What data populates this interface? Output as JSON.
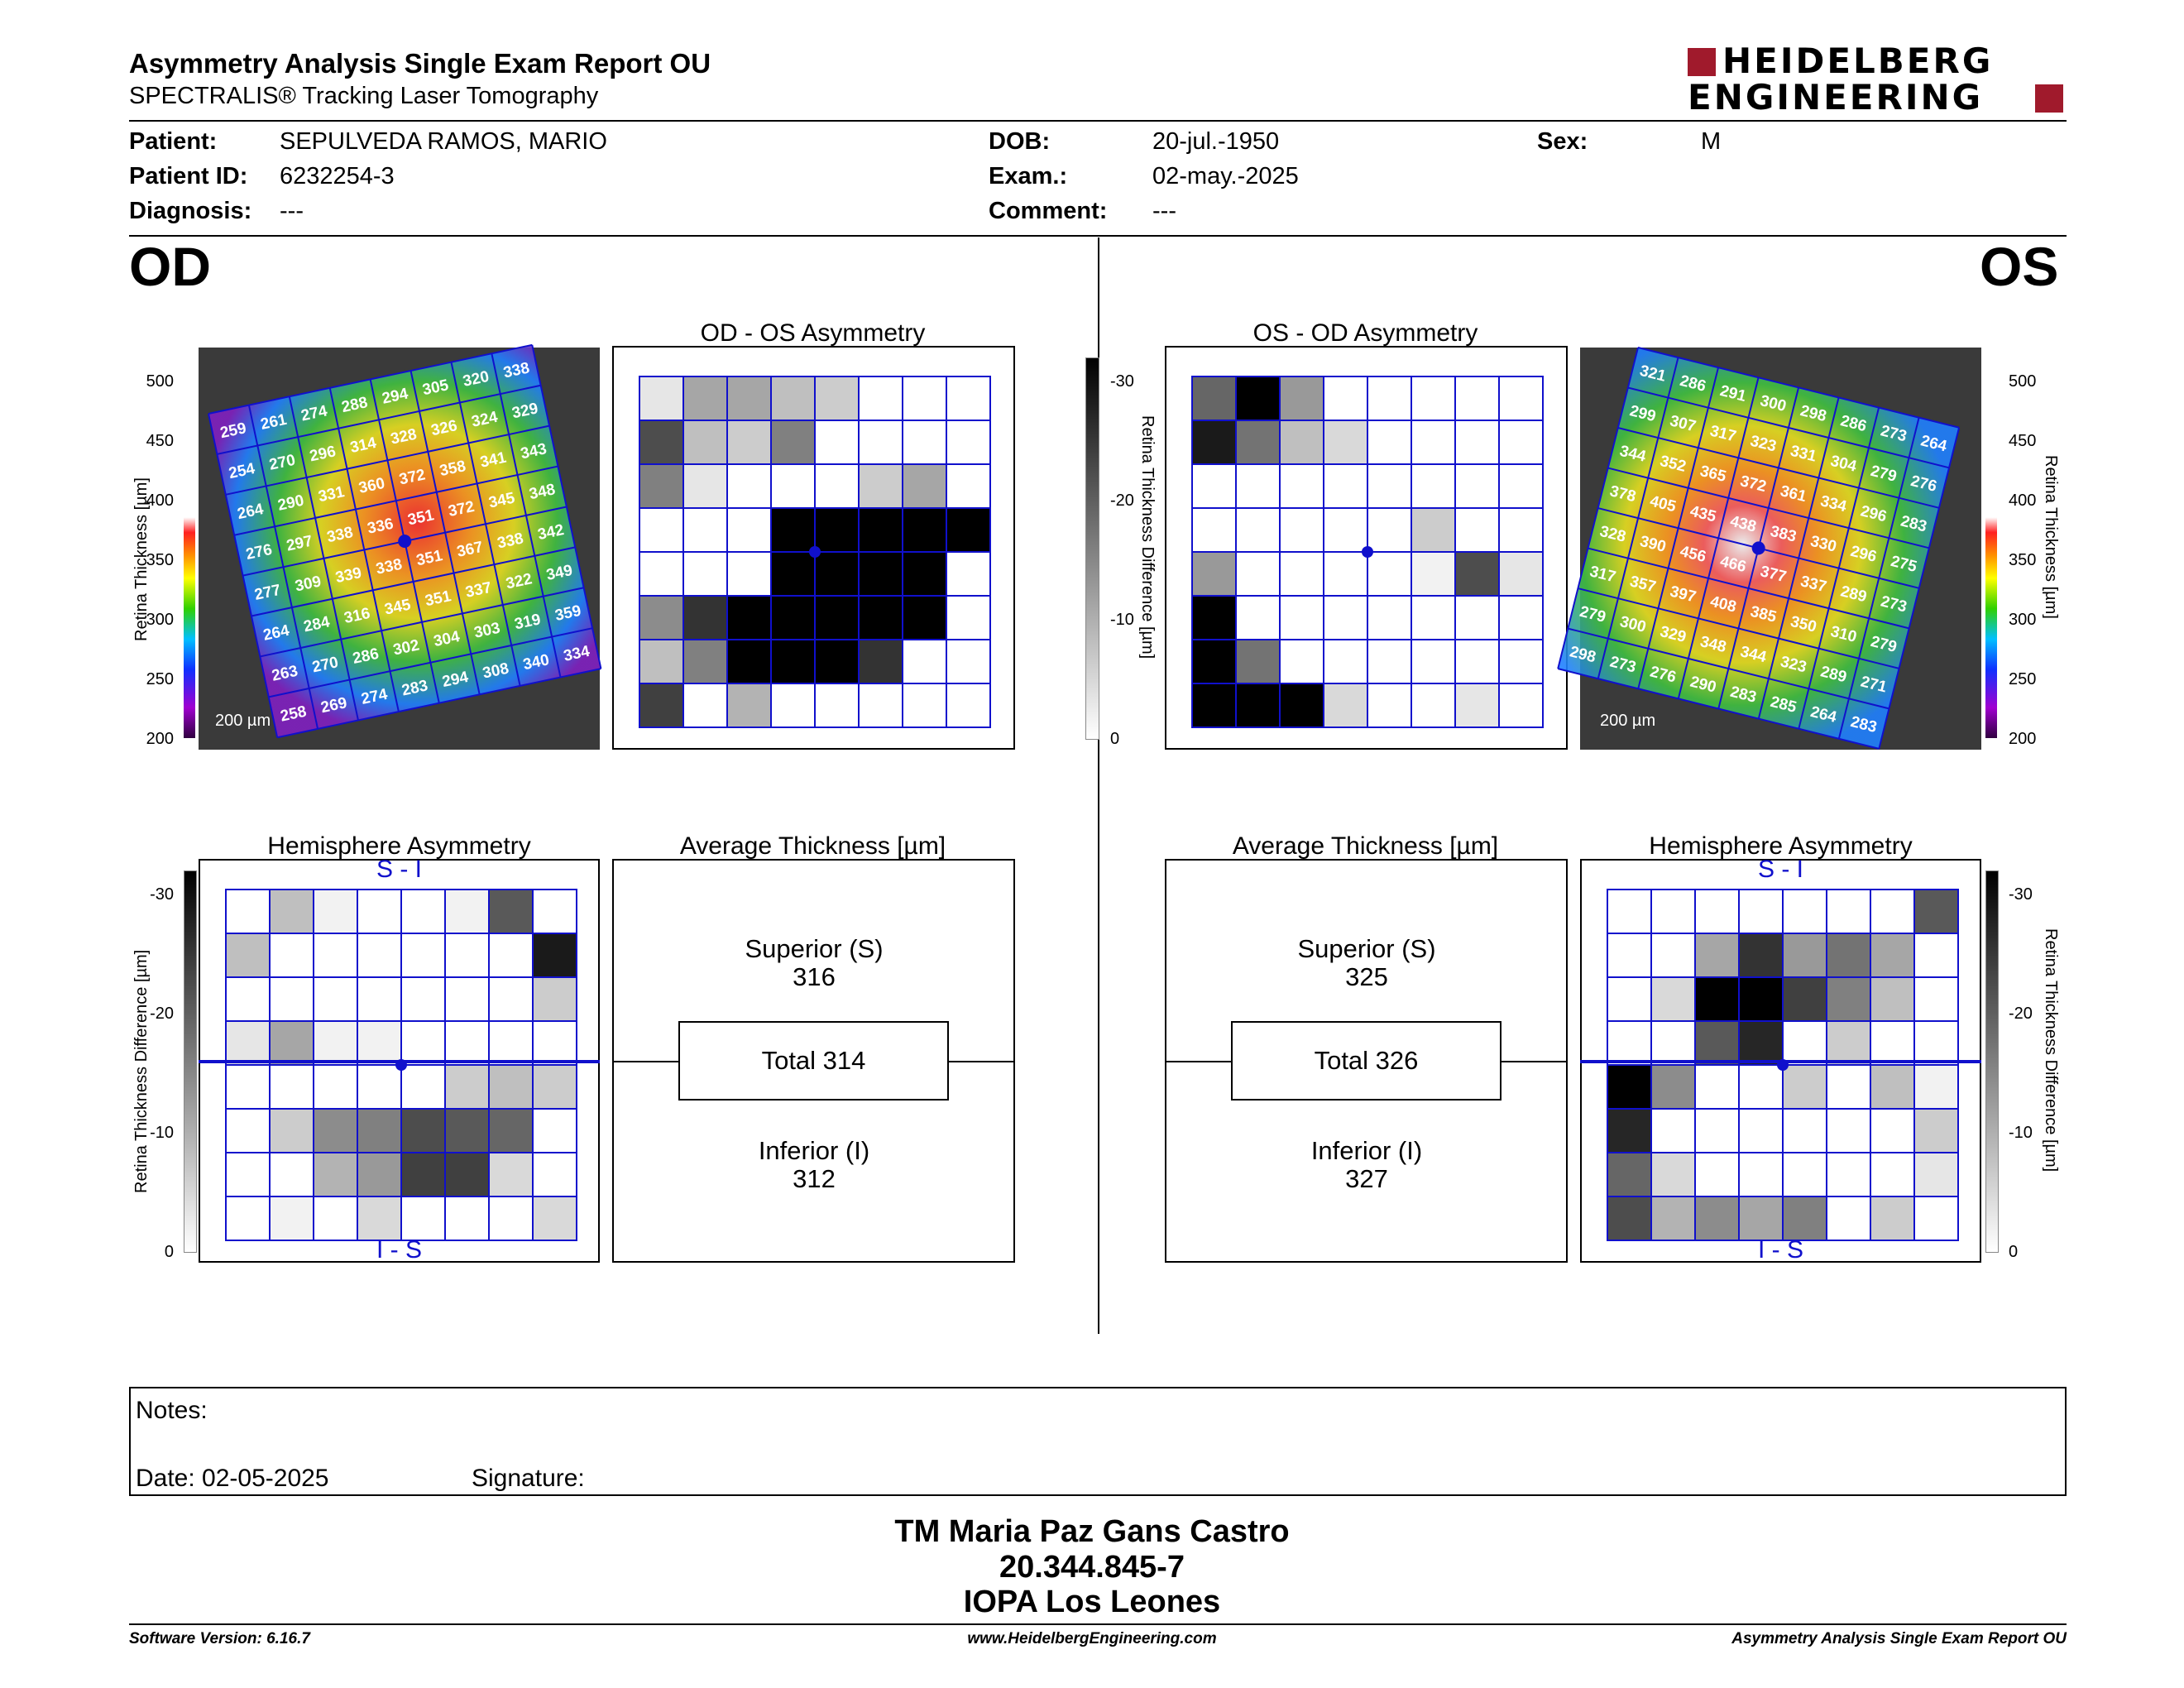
{
  "report": {
    "title": "Asymmetry Analysis Single Exam Report OU",
    "subtitle": "SPECTRALIS® Tracking Laser Tomography",
    "logo_line1": "HEIDELBERG",
    "logo_line2": "ENGINEERING"
  },
  "patient": {
    "patient_label": "Patient:",
    "patient_name": "SEPULVEDA RAMOS, MARIO",
    "id_label": "Patient ID:",
    "patient_id": "6232254-3",
    "diagnosis_label": "Diagnosis:",
    "diagnosis": "---",
    "dob_label": "DOB:",
    "dob": "20-jul.-1950",
    "exam_label": "Exam.:",
    "exam": "02-may.-2025",
    "comment_label": "Comment:",
    "comment": "---",
    "sex_label": "Sex:",
    "sex": "M"
  },
  "od": {
    "eye_label": "OD",
    "asym_title": "OD - OS Asymmetry",
    "hemi_title": "Hemisphere Asymmetry",
    "avg_title": "Average Thickness [µm]",
    "superior_label": "Superior (S)",
    "superior_value": "316",
    "total_label": "Total 314",
    "inferior_label": "Inferior (I)",
    "inferior_value": "312",
    "s_i": "S - I",
    "i_s": "I - S",
    "scale": "200 µm",
    "thickness_ticks": [
      "500",
      "450",
      "400",
      "350",
      "300",
      "250",
      "200"
    ],
    "thickness_axis": "Retina Thickness [µm]",
    "diff_ticks": [
      "-30",
      "-20",
      "-10",
      "0"
    ],
    "diff_axis": "Retina Thickness Difference [µm]",
    "thickness_grid": [
      [
        "259",
        "261",
        "274",
        "288",
        "294",
        "305",
        "320",
        "338"
      ],
      [
        "254",
        "270",
        "296",
        "314",
        "328",
        "326",
        "324",
        "329"
      ],
      [
        "264",
        "290",
        "331",
        "360",
        "372",
        "358",
        "341",
        "343"
      ],
      [
        "276",
        "297",
        "338",
        "336",
        "351",
        "372",
        "345",
        "348"
      ],
      [
        "277",
        "309",
        "339",
        "338",
        "351",
        "367",
        "338",
        "342"
      ],
      [
        "264",
        "284",
        "316",
        "345",
        "351",
        "337",
        "322",
        "349"
      ],
      [
        "263",
        "270",
        "286",
        "302",
        "304",
        "303",
        "319",
        "359"
      ],
      [
        "258",
        "269",
        "274",
        "283",
        "294",
        "308",
        "340",
        "334"
      ]
    ],
    "asym_gray": [
      [
        0.1,
        0.35,
        0.35,
        0.25,
        0.2,
        0,
        0,
        0
      ],
      [
        0.7,
        0.25,
        0.2,
        0.5,
        0,
        0,
        0,
        0
      ],
      [
        0.5,
        0.1,
        0,
        0,
        0,
        0.2,
        0.35,
        0
      ],
      [
        0,
        0,
        0,
        1,
        1,
        1,
        1,
        1
      ],
      [
        0,
        0,
        0,
        1,
        1,
        1,
        1,
        0
      ],
      [
        0.45,
        0.8,
        1,
        1,
        1,
        1,
        1,
        0
      ],
      [
        0.25,
        0.5,
        1,
        1,
        1,
        0.8,
        0,
        0
      ],
      [
        0.75,
        0,
        0.3,
        0,
        0,
        0,
        0,
        0
      ]
    ],
    "hemi_gray": [
      [
        0,
        0.25,
        0.05,
        0,
        0,
        0.05,
        0.65,
        0
      ],
      [
        0.25,
        0,
        0,
        0,
        0,
        0,
        0,
        0.9
      ],
      [
        0,
        0,
        0,
        0,
        0,
        0,
        0,
        0.2
      ],
      [
        0.1,
        0.35,
        0.05,
        0.05,
        0,
        0,
        0,
        0
      ],
      [
        0,
        0,
        0,
        0,
        0,
        0.2,
        0.25,
        0.2
      ],
      [
        0,
        0.2,
        0.45,
        0.5,
        0.7,
        0.65,
        0.6,
        0
      ],
      [
        0,
        0,
        0.3,
        0.4,
        0.75,
        0.75,
        0.15,
        0
      ],
      [
        0,
        0.05,
        0,
        0.15,
        0,
        0,
        0,
        0.15
      ]
    ]
  },
  "os": {
    "eye_label": "OS",
    "asym_title": "OS - OD Asymmetry",
    "hemi_title": "Hemisphere Asymmetry",
    "avg_title": "Average Thickness [µm]",
    "superior_label": "Superior (S)",
    "superior_value": "325",
    "total_label": "Total 326",
    "inferior_label": "Inferior (I)",
    "inferior_value": "327",
    "s_i": "S - I",
    "i_s": "I - S",
    "scale": "200 µm",
    "thickness_ticks": [
      "500",
      "450",
      "400",
      "350",
      "300",
      "250",
      "200"
    ],
    "thickness_axis": "Retina Thickness [µm]",
    "diff_ticks": [
      "-30",
      "-20",
      "-10",
      "0"
    ],
    "diff_axis": "Retina Thickness Difference [µm]",
    "thickness_grid": [
      [
        "321",
        "286",
        "291",
        "300",
        "298",
        "286",
        "273",
        "264"
      ],
      [
        "299",
        "307",
        "317",
        "323",
        "331",
        "304",
        "279",
        "276"
      ],
      [
        "344",
        "352",
        "365",
        "372",
        "361",
        "334",
        "296",
        "283"
      ],
      [
        "378",
        "405",
        "435",
        "438",
        "383",
        "330",
        "296",
        "275"
      ],
      [
        "328",
        "390",
        "456",
        "466",
        "377",
        "337",
        "289",
        "273"
      ],
      [
        "317",
        "357",
        "397",
        "408",
        "385",
        "350",
        "310",
        "279"
      ],
      [
        "279",
        "300",
        "329",
        "348",
        "344",
        "323",
        "289",
        "271"
      ],
      [
        "298",
        "273",
        "276",
        "290",
        "283",
        "285",
        "264",
        "283"
      ]
    ],
    "asym_gray": [
      [
        0.6,
        1,
        0.4,
        0,
        0,
        0,
        0,
        0
      ],
      [
        0.9,
        0.55,
        0.25,
        0.15,
        0,
        0,
        0,
        0
      ],
      [
        0,
        0,
        0,
        0,
        0,
        0,
        0,
        0
      ],
      [
        0,
        0,
        0,
        0,
        0,
        0.2,
        0,
        0
      ],
      [
        0.4,
        0,
        0,
        0,
        0,
        0.05,
        0.7,
        0.1
      ],
      [
        1,
        0,
        0,
        0,
        0,
        0,
        0,
        0
      ],
      [
        1,
        0.55,
        0,
        0,
        0,
        0,
        0,
        0
      ],
      [
        1,
        1,
        1,
        0.15,
        0,
        0,
        0.1,
        0
      ]
    ],
    "hemi_gray": [
      [
        0,
        0,
        0,
        0,
        0,
        0,
        0,
        0.65
      ],
      [
        0,
        0,
        0.35,
        0.8,
        0.4,
        0.55,
        0.35,
        0
      ],
      [
        0,
        0.15,
        1,
        1,
        0.75,
        0.5,
        0.25,
        0
      ],
      [
        0,
        0,
        0.65,
        0.85,
        0,
        0.2,
        0,
        0
      ],
      [
        1,
        0.45,
        0,
        0,
        0.2,
        0,
        0.25,
        0.05
      ],
      [
        0.85,
        0,
        0,
        0,
        0,
        0,
        0,
        0.2
      ],
      [
        0.6,
        0.15,
        0,
        0,
        0,
        0,
        0,
        0.1
      ],
      [
        0.7,
        0.3,
        0.45,
        0.35,
        0.5,
        0,
        0.2,
        0
      ]
    ]
  },
  "notes": {
    "notes_label": "Notes:",
    "date_label": "Date: 02-05-2025",
    "signature_label": "Signature:"
  },
  "signatory": {
    "name": "TM Maria Paz Gans Castro",
    "rut": "20.344.845-7",
    "institution": "IOPA Los Leones"
  },
  "footer": {
    "software": "Software Version: 6.16.7",
    "website": "www.HeidelbergEngineering.com",
    "report": "Asymmetry Analysis Single Exam Report OU"
  }
}
